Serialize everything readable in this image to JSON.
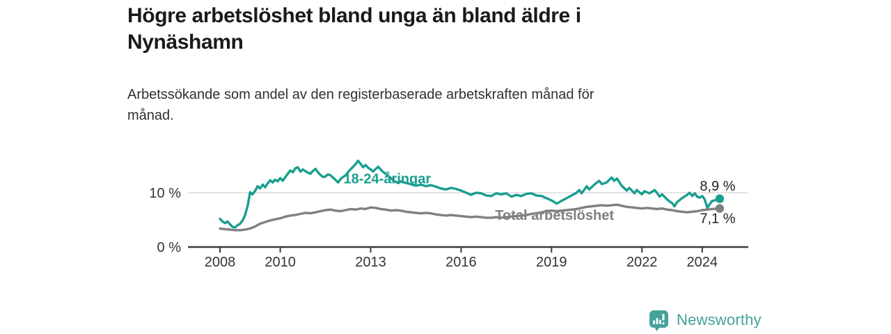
{
  "header": {
    "title_lines": [
      "Högre arbetslöshet bland unga än bland äldre i",
      "Nynäshamn"
    ],
    "subtitle_lines": [
      "Arbetssökande som andel av den registerbaserade arbetskraften månad för",
      "månad."
    ]
  },
  "footer": {
    "brand": "Newsworthy",
    "logo_icon": "bar-chart-speech-bubble-icon"
  },
  "colors": {
    "accent_teal": "#1a9e8f",
    "series_gray": "#808083",
    "logo_teal": "#45a29a",
    "grid": "#dcdcdc",
    "axis": "#3a3a3a",
    "axis_text": "#333333",
    "text_dark": "#222222"
  },
  "chart_data": {
    "type": "line",
    "title": "Högre arbetslöshet bland unga än bland äldre i Nynäshamn",
    "subtitle": "Arbetssökande som andel av den registerbaserade arbetskraften månad för månad.",
    "xlabel": "",
    "ylabel": "",
    "y_unit": "%",
    "x_unit": "year (monthly data)",
    "xlim": [
      2006.9,
      2025.5
    ],
    "ylim": [
      0,
      17
    ],
    "grid": "horizontal gridline at 10 % only",
    "legend_position": "labels drawn on lines",
    "yticks": [
      {
        "value": 0,
        "label": "0 %"
      },
      {
        "value": 10,
        "label": "10 %"
      }
    ],
    "xticks": [
      {
        "value": 2008,
        "label": "2008"
      },
      {
        "value": 2010,
        "label": "2010"
      },
      {
        "value": 2013,
        "label": "2013"
      },
      {
        "value": 2016,
        "label": "2016"
      },
      {
        "value": 2019,
        "label": "2019"
      },
      {
        "value": 2022,
        "label": "2022"
      },
      {
        "value": 2024,
        "label": "2024"
      }
    ],
    "series": [
      {
        "name": "18-24-åringar",
        "color_key": "accent_teal",
        "end_value": 8.9,
        "end_value_label": "8,9 %",
        "points": [
          [
            2008.0,
            5.2
          ],
          [
            2008.08,
            4.7
          ],
          [
            2008.17,
            4.4
          ],
          [
            2008.25,
            4.7
          ],
          [
            2008.33,
            4.2
          ],
          [
            2008.42,
            3.7
          ],
          [
            2008.5,
            3.6
          ],
          [
            2008.58,
            4.0
          ],
          [
            2008.67,
            4.3
          ],
          [
            2008.75,
            4.9
          ],
          [
            2008.83,
            5.8
          ],
          [
            2008.92,
            7.6
          ],
          [
            2009.0,
            10.1
          ],
          [
            2009.08,
            9.7
          ],
          [
            2009.17,
            10.4
          ],
          [
            2009.25,
            11.2
          ],
          [
            2009.33,
            10.8
          ],
          [
            2009.42,
            11.5
          ],
          [
            2009.5,
            11.0
          ],
          [
            2009.58,
            11.7
          ],
          [
            2009.67,
            12.3
          ],
          [
            2009.75,
            11.9
          ],
          [
            2009.83,
            12.4
          ],
          [
            2009.92,
            12.1
          ],
          [
            2010.0,
            12.7
          ],
          [
            2010.08,
            12.2
          ],
          [
            2010.17,
            12.9
          ],
          [
            2010.25,
            13.5
          ],
          [
            2010.33,
            14.1
          ],
          [
            2010.42,
            13.8
          ],
          [
            2010.5,
            14.5
          ],
          [
            2010.58,
            14.7
          ],
          [
            2010.67,
            13.9
          ],
          [
            2010.75,
            14.3
          ],
          [
            2010.83,
            14.0
          ],
          [
            2010.92,
            13.7
          ],
          [
            2011.0,
            13.5
          ],
          [
            2011.08,
            14.0
          ],
          [
            2011.17,
            14.4
          ],
          [
            2011.25,
            13.8
          ],
          [
            2011.33,
            13.3
          ],
          [
            2011.42,
            12.9
          ],
          [
            2011.5,
            13.0
          ],
          [
            2011.58,
            13.4
          ],
          [
            2011.67,
            13.2
          ],
          [
            2011.75,
            12.8
          ],
          [
            2011.83,
            12.4
          ],
          [
            2011.92,
            11.9
          ],
          [
            2012.0,
            12.5
          ],
          [
            2012.08,
            12.9
          ],
          [
            2012.17,
            13.2
          ],
          [
            2012.25,
            13.8
          ],
          [
            2012.33,
            14.3
          ],
          [
            2012.42,
            14.8
          ],
          [
            2012.5,
            15.3
          ],
          [
            2012.58,
            15.9
          ],
          [
            2012.67,
            15.3
          ],
          [
            2012.75,
            14.7
          ],
          [
            2012.83,
            15.1
          ],
          [
            2012.92,
            14.6
          ],
          [
            2013.0,
            14.3
          ],
          [
            2013.08,
            13.9
          ],
          [
            2013.17,
            14.4
          ],
          [
            2013.25,
            14.8
          ],
          [
            2013.33,
            14.3
          ],
          [
            2013.42,
            13.8
          ],
          [
            2013.5,
            13.5
          ],
          [
            2013.58,
            13.1
          ],
          [
            2013.67,
            12.7
          ],
          [
            2013.75,
            12.3
          ],
          [
            2013.83,
            12.0
          ],
          [
            2013.92,
            11.8
          ],
          [
            2014.0,
            12.1
          ],
          [
            2014.17,
            11.8
          ],
          [
            2014.33,
            11.6
          ],
          [
            2014.5,
            11.3
          ],
          [
            2014.67,
            11.5
          ],
          [
            2014.83,
            11.2
          ],
          [
            2015.0,
            11.4
          ],
          [
            2015.17,
            11.1
          ],
          [
            2015.33,
            10.8
          ],
          [
            2015.5,
            10.6
          ],
          [
            2015.67,
            10.9
          ],
          [
            2015.83,
            10.7
          ],
          [
            2016.0,
            10.4
          ],
          [
            2016.17,
            10.0
          ],
          [
            2016.33,
            9.6
          ],
          [
            2016.5,
            10.0
          ],
          [
            2016.67,
            9.9
          ],
          [
            2016.83,
            9.5
          ],
          [
            2017.0,
            9.4
          ],
          [
            2017.17,
            9.9
          ],
          [
            2017.33,
            9.7
          ],
          [
            2017.5,
            9.9
          ],
          [
            2017.67,
            9.3
          ],
          [
            2017.83,
            9.6
          ],
          [
            2018.0,
            9.4
          ],
          [
            2018.17,
            9.8
          ],
          [
            2018.33,
            9.9
          ],
          [
            2018.5,
            9.5
          ],
          [
            2018.67,
            9.4
          ],
          [
            2018.83,
            9.0
          ],
          [
            2019.0,
            8.6
          ],
          [
            2019.17,
            8.0
          ],
          [
            2019.33,
            8.5
          ],
          [
            2019.5,
            9.0
          ],
          [
            2019.67,
            9.5
          ],
          [
            2019.83,
            10.0
          ],
          [
            2019.92,
            10.5
          ],
          [
            2020.0,
            9.9
          ],
          [
            2020.17,
            11.2
          ],
          [
            2020.25,
            10.6
          ],
          [
            2020.42,
            11.5
          ],
          [
            2020.58,
            12.2
          ],
          [
            2020.67,
            11.6
          ],
          [
            2020.83,
            11.9
          ],
          [
            2020.92,
            12.4
          ],
          [
            2021.0,
            12.8
          ],
          [
            2021.08,
            12.2
          ],
          [
            2021.17,
            12.6
          ],
          [
            2021.33,
            11.3
          ],
          [
            2021.5,
            10.4
          ],
          [
            2021.58,
            10.9
          ],
          [
            2021.75,
            9.9
          ],
          [
            2021.83,
            10.5
          ],
          [
            2022.0,
            9.7
          ],
          [
            2022.08,
            10.3
          ],
          [
            2022.25,
            9.9
          ],
          [
            2022.42,
            10.5
          ],
          [
            2022.5,
            10.0
          ],
          [
            2022.58,
            9.3
          ],
          [
            2022.67,
            9.7
          ],
          [
            2022.83,
            8.8
          ],
          [
            2022.92,
            8.4
          ],
          [
            2023.0,
            8.1
          ],
          [
            2023.08,
            7.5
          ],
          [
            2023.17,
            8.3
          ],
          [
            2023.33,
            9.0
          ],
          [
            2023.5,
            9.6
          ],
          [
            2023.58,
            10.0
          ],
          [
            2023.67,
            9.4
          ],
          [
            2023.75,
            9.9
          ],
          [
            2023.83,
            9.3
          ],
          [
            2023.92,
            9.1
          ],
          [
            2024.0,
            9.4
          ],
          [
            2024.08,
            8.8
          ],
          [
            2024.17,
            7.2
          ],
          [
            2024.25,
            7.9
          ],
          [
            2024.33,
            8.5
          ],
          [
            2024.5,
            8.7
          ],
          [
            2024.58,
            8.9
          ]
        ]
      },
      {
        "name": "Total arbetslöshet",
        "color_key": "series_gray",
        "end_value": 7.1,
        "end_value_label": "7,1 %",
        "points": [
          [
            2008.0,
            3.4
          ],
          [
            2008.17,
            3.3
          ],
          [
            2008.33,
            3.2
          ],
          [
            2008.5,
            3.1
          ],
          [
            2008.67,
            3.1
          ],
          [
            2008.83,
            3.2
          ],
          [
            2009.0,
            3.4
          ],
          [
            2009.17,
            3.8
          ],
          [
            2009.33,
            4.3
          ],
          [
            2009.5,
            4.6
          ],
          [
            2009.67,
            4.9
          ],
          [
            2009.83,
            5.1
          ],
          [
            2010.0,
            5.3
          ],
          [
            2010.17,
            5.6
          ],
          [
            2010.33,
            5.8
          ],
          [
            2010.5,
            5.9
          ],
          [
            2010.67,
            6.1
          ],
          [
            2010.83,
            6.3
          ],
          [
            2011.0,
            6.2
          ],
          [
            2011.17,
            6.4
          ],
          [
            2011.33,
            6.6
          ],
          [
            2011.5,
            6.8
          ],
          [
            2011.67,
            6.9
          ],
          [
            2011.83,
            6.7
          ],
          [
            2012.0,
            6.6
          ],
          [
            2012.17,
            6.8
          ],
          [
            2012.33,
            7.0
          ],
          [
            2012.5,
            6.9
          ],
          [
            2012.67,
            7.1
          ],
          [
            2012.83,
            7.0
          ],
          [
            2013.0,
            7.3
          ],
          [
            2013.17,
            7.2
          ],
          [
            2013.33,
            7.0
          ],
          [
            2013.5,
            6.9
          ],
          [
            2013.67,
            6.7
          ],
          [
            2013.83,
            6.8
          ],
          [
            2014.0,
            6.7
          ],
          [
            2014.17,
            6.5
          ],
          [
            2014.33,
            6.4
          ],
          [
            2014.5,
            6.3
          ],
          [
            2014.67,
            6.2
          ],
          [
            2014.83,
            6.3
          ],
          [
            2015.0,
            6.2
          ],
          [
            2015.17,
            6.0
          ],
          [
            2015.33,
            5.9
          ],
          [
            2015.5,
            5.8
          ],
          [
            2015.67,
            5.9
          ],
          [
            2015.83,
            5.8
          ],
          [
            2016.0,
            5.7
          ],
          [
            2016.17,
            5.6
          ],
          [
            2016.33,
            5.5
          ],
          [
            2016.5,
            5.6
          ],
          [
            2016.67,
            5.5
          ],
          [
            2016.83,
            5.4
          ],
          [
            2017.0,
            5.4
          ],
          [
            2017.17,
            5.5
          ],
          [
            2017.33,
            5.4
          ],
          [
            2017.5,
            5.5
          ],
          [
            2017.67,
            5.6
          ],
          [
            2017.83,
            5.7
          ],
          [
            2018.0,
            5.8
          ],
          [
            2018.17,
            5.9
          ],
          [
            2018.33,
            6.1
          ],
          [
            2018.5,
            6.2
          ],
          [
            2018.67,
            6.4
          ],
          [
            2018.83,
            6.6
          ],
          [
            2019.0,
            6.7
          ],
          [
            2019.17,
            6.6
          ],
          [
            2019.33,
            6.7
          ],
          [
            2019.5,
            6.8
          ],
          [
            2019.67,
            6.9
          ],
          [
            2019.83,
            7.0
          ],
          [
            2020.0,
            7.2
          ],
          [
            2020.17,
            7.4
          ],
          [
            2020.33,
            7.5
          ],
          [
            2020.5,
            7.6
          ],
          [
            2020.67,
            7.7
          ],
          [
            2020.83,
            7.6
          ],
          [
            2021.0,
            7.7
          ],
          [
            2021.17,
            7.8
          ],
          [
            2021.33,
            7.6
          ],
          [
            2021.5,
            7.4
          ],
          [
            2021.67,
            7.3
          ],
          [
            2021.83,
            7.2
          ],
          [
            2022.0,
            7.1
          ],
          [
            2022.17,
            7.2
          ],
          [
            2022.33,
            7.1
          ],
          [
            2022.5,
            7.0
          ],
          [
            2022.67,
            7.1
          ],
          [
            2022.83,
            6.9
          ],
          [
            2023.0,
            6.8
          ],
          [
            2023.17,
            6.6
          ],
          [
            2023.33,
            6.5
          ],
          [
            2023.5,
            6.4
          ],
          [
            2023.67,
            6.5
          ],
          [
            2023.83,
            6.6
          ],
          [
            2024.0,
            6.8
          ],
          [
            2024.17,
            6.9
          ],
          [
            2024.33,
            7.0
          ],
          [
            2024.58,
            7.1
          ]
        ]
      }
    ],
    "series_labels": [
      {
        "text": "18-24-åringar",
        "year": 2013.55,
        "pct": 12.6,
        "color_key": "accent_teal"
      },
      {
        "text": "Total arbetslöshet",
        "year": 2019.1,
        "pct": 5.9,
        "color_key": "series_gray"
      }
    ],
    "end_labels": [
      {
        "text": "8,9 %",
        "year": 2023.92,
        "pct": 11.3
      },
      {
        "text": "7,1 %",
        "year": 2023.92,
        "pct": 5.3
      }
    ]
  }
}
